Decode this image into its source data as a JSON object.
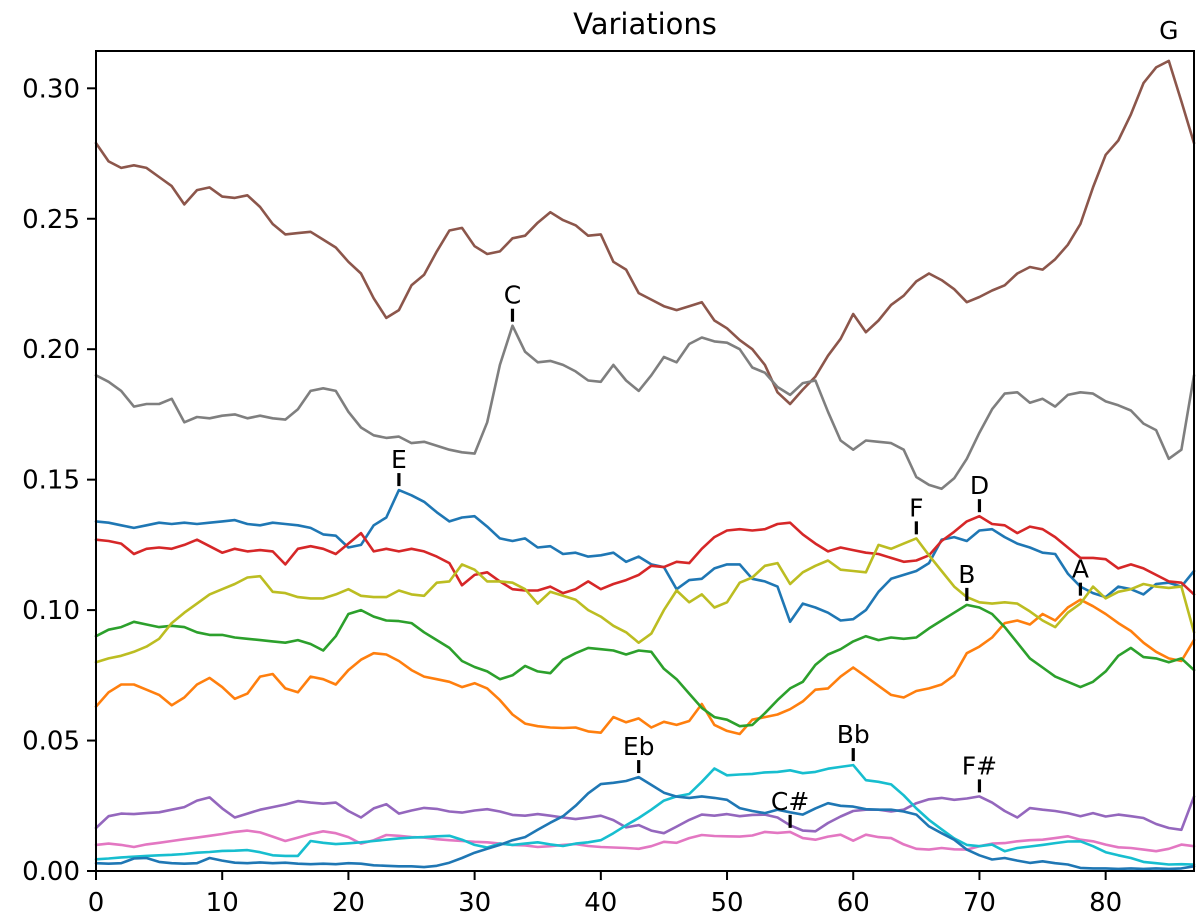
{
  "title": "Variations",
  "axes": {
    "x_ticks": [
      0,
      10,
      20,
      30,
      40,
      50,
      60,
      70,
      80
    ],
    "y_ticks": [
      "0.00",
      "0.05",
      "0.10",
      "0.15",
      "0.20",
      "0.25",
      "0.30"
    ],
    "xlim": [
      0,
      87
    ],
    "ylim": [
      0,
      0.3143
    ]
  },
  "chart_data": {
    "type": "line",
    "title": "Variations",
    "xlabel": "",
    "ylabel": "",
    "x_range": [
      0,
      87
    ],
    "grid": false,
    "legend": "none (series labeled by peak annotations)",
    "series": [
      {
        "name": "E",
        "color": "#1f77b4",
        "values": [
          0.134,
          0.1335,
          0.1325,
          0.1315,
          0.1325,
          0.1335,
          0.133,
          0.1335,
          0.133,
          0.1335,
          0.134,
          0.1345,
          0.133,
          0.1325,
          0.1335,
          0.133,
          0.1325,
          0.1315,
          0.129,
          0.1285,
          0.124,
          0.125,
          0.1325,
          0.1355,
          0.146,
          0.144,
          0.1415,
          0.1375,
          0.134,
          0.1355,
          0.136,
          0.132,
          0.1275,
          0.1265,
          0.1275,
          0.124,
          0.1245,
          0.1215,
          0.122,
          0.1205,
          0.121,
          0.122,
          0.1185,
          0.1205,
          0.1175,
          0.1165,
          0.108,
          0.1115,
          0.112,
          0.116,
          0.1175,
          0.1175,
          0.112,
          0.111,
          0.109,
          0.0955,
          0.1025,
          0.101,
          0.099,
          0.096,
          0.0965,
          0.1,
          0.107,
          0.112,
          0.1135,
          0.115,
          0.118,
          0.127,
          0.128,
          0.1265,
          0.1305,
          0.131,
          0.128,
          0.1255,
          0.124,
          0.122,
          0.1215,
          0.114,
          0.109,
          0.1065,
          0.105,
          0.109,
          0.108,
          0.106,
          0.11,
          0.1105,
          0.109,
          0.115
        ]
      },
      {
        "name": "A",
        "color": "#ff7f0e",
        "values": [
          0.063,
          0.0685,
          0.0715,
          0.0715,
          0.0695,
          0.0675,
          0.0635,
          0.0665,
          0.0715,
          0.074,
          0.0705,
          0.066,
          0.068,
          0.0745,
          0.0755,
          0.07,
          0.0685,
          0.0745,
          0.0735,
          0.0715,
          0.077,
          0.081,
          0.0835,
          0.083,
          0.0805,
          0.077,
          0.0745,
          0.0735,
          0.0725,
          0.0705,
          0.072,
          0.07,
          0.0655,
          0.06,
          0.0565,
          0.0555,
          0.055,
          0.0548,
          0.055,
          0.0535,
          0.053,
          0.059,
          0.057,
          0.0585,
          0.055,
          0.0572,
          0.056,
          0.0575,
          0.064,
          0.056,
          0.0537,
          0.0525,
          0.058,
          0.059,
          0.06,
          0.062,
          0.065,
          0.0695,
          0.07,
          0.0745,
          0.078,
          0.0745,
          0.071,
          0.0675,
          0.0665,
          0.069,
          0.07,
          0.0715,
          0.075,
          0.0835,
          0.086,
          0.0895,
          0.095,
          0.096,
          0.0945,
          0.0985,
          0.096,
          0.101,
          0.104,
          0.1015,
          0.0985,
          0.095,
          0.092,
          0.0875,
          0.084,
          0.0815,
          0.0805,
          0.0885
        ]
      },
      {
        "name": "B",
        "color": "#2ca02c",
        "values": [
          0.09,
          0.0925,
          0.0935,
          0.0955,
          0.0945,
          0.0935,
          0.094,
          0.0935,
          0.0915,
          0.0905,
          0.0905,
          0.0895,
          0.089,
          0.0885,
          0.088,
          0.0875,
          0.0885,
          0.087,
          0.0845,
          0.09,
          0.0985,
          0.1,
          0.0975,
          0.096,
          0.0958,
          0.095,
          0.0915,
          0.0885,
          0.0855,
          0.0805,
          0.0782,
          0.0765,
          0.0735,
          0.075,
          0.0786,
          0.0765,
          0.0758,
          0.081,
          0.0835,
          0.0855,
          0.085,
          0.0845,
          0.083,
          0.0845,
          0.084,
          0.0775,
          0.0735,
          0.068,
          0.0625,
          0.059,
          0.058,
          0.0555,
          0.056,
          0.0605,
          0.0655,
          0.07,
          0.0725,
          0.079,
          0.083,
          0.085,
          0.088,
          0.09,
          0.0885,
          0.0895,
          0.089,
          0.0895,
          0.093,
          0.096,
          0.099,
          0.102,
          0.101,
          0.0985,
          0.0935,
          0.0875,
          0.0815,
          0.078,
          0.0745,
          0.0725,
          0.0705,
          0.0725,
          0.0765,
          0.0825,
          0.0855,
          0.082,
          0.0815,
          0.08,
          0.0815,
          0.077
        ]
      },
      {
        "name": "D",
        "color": "#d62728",
        "values": [
          0.127,
          0.1265,
          0.1255,
          0.1215,
          0.1235,
          0.124,
          0.1235,
          0.125,
          0.127,
          0.1245,
          0.122,
          0.1235,
          0.1225,
          0.123,
          0.1225,
          0.1175,
          0.1235,
          0.1245,
          0.1235,
          0.1215,
          0.1255,
          0.1295,
          0.1225,
          0.1235,
          0.1225,
          0.1235,
          0.1225,
          0.1205,
          0.118,
          0.1095,
          0.1135,
          0.1145,
          0.111,
          0.108,
          0.1075,
          0.1075,
          0.109,
          0.1065,
          0.108,
          0.111,
          0.108,
          0.11,
          0.1115,
          0.1135,
          0.117,
          0.1165,
          0.1185,
          0.118,
          0.1235,
          0.128,
          0.1305,
          0.131,
          0.1305,
          0.131,
          0.133,
          0.1335,
          0.129,
          0.1255,
          0.1225,
          0.124,
          0.123,
          0.122,
          0.1215,
          0.12,
          0.1185,
          0.119,
          0.121,
          0.1265,
          0.13,
          0.134,
          0.136,
          0.133,
          0.1325,
          0.1295,
          0.132,
          0.131,
          0.128,
          0.124,
          0.12,
          0.12,
          0.1195,
          0.116,
          0.1175,
          0.116,
          0.1135,
          0.111,
          0.1105,
          0.106
        ]
      },
      {
        "name": "F#",
        "color": "#9467bd",
        "values": [
          0.0165,
          0.021,
          0.022,
          0.0218,
          0.0222,
          0.0225,
          0.0235,
          0.0245,
          0.027,
          0.0282,
          0.024,
          0.0205,
          0.022,
          0.0235,
          0.0245,
          0.0255,
          0.0268,
          0.0262,
          0.0258,
          0.0262,
          0.023,
          0.0205,
          0.024,
          0.0256,
          0.022,
          0.0232,
          0.0242,
          0.0238,
          0.0228,
          0.0224,
          0.0232,
          0.0237,
          0.0228,
          0.0215,
          0.0212,
          0.0218,
          0.0212,
          0.0205,
          0.0199,
          0.0205,
          0.0212,
          0.0195,
          0.0167,
          0.0176,
          0.0155,
          0.0145,
          0.017,
          0.0196,
          0.0216,
          0.0212,
          0.0218,
          0.021,
          0.0215,
          0.0216,
          0.0205,
          0.0175,
          0.0155,
          0.0152,
          0.0184,
          0.0209,
          0.023,
          0.0235,
          0.0235,
          0.0228,
          0.0235,
          0.026,
          0.0275,
          0.028,
          0.0273,
          0.0278,
          0.0286,
          0.0262,
          0.023,
          0.0205,
          0.0241,
          0.0235,
          0.023,
          0.0222,
          0.021,
          0.0222,
          0.0209,
          0.0216,
          0.021,
          0.0203,
          0.018,
          0.0165,
          0.0158,
          0.0285
        ]
      },
      {
        "name": "G",
        "color": "#8c564b",
        "values": [
          0.279,
          0.272,
          0.2695,
          0.2705,
          0.2695,
          0.266,
          0.2625,
          0.2555,
          0.261,
          0.262,
          0.2585,
          0.258,
          0.259,
          0.2545,
          0.248,
          0.244,
          0.2445,
          0.245,
          0.242,
          0.239,
          0.2335,
          0.229,
          0.2195,
          0.212,
          0.215,
          0.2245,
          0.2285,
          0.2375,
          0.2455,
          0.2465,
          0.2395,
          0.2365,
          0.2375,
          0.2425,
          0.2435,
          0.2485,
          0.2525,
          0.2495,
          0.2475,
          0.2435,
          0.244,
          0.2335,
          0.2305,
          0.2215,
          0.219,
          0.2165,
          0.215,
          0.2165,
          0.218,
          0.211,
          0.208,
          0.2035,
          0.2,
          0.194,
          0.1835,
          0.179,
          0.1845,
          0.1895,
          0.1975,
          0.204,
          0.2135,
          0.2065,
          0.211,
          0.217,
          0.2205,
          0.226,
          0.229,
          0.2265,
          0.223,
          0.218,
          0.22,
          0.2225,
          0.2245,
          0.229,
          0.2315,
          0.2305,
          0.2345,
          0.24,
          0.248,
          0.262,
          0.2745,
          0.28,
          0.29,
          0.302,
          0.308,
          0.3105,
          0.295,
          0.279
        ]
      },
      {
        "name": "C#",
        "color": "#e377c2",
        "values": [
          0.01,
          0.0105,
          0.01,
          0.0092,
          0.0102,
          0.0108,
          0.0115,
          0.0122,
          0.0128,
          0.0135,
          0.0142,
          0.015,
          0.0155,
          0.0148,
          0.0132,
          0.0115,
          0.0128,
          0.0142,
          0.0152,
          0.0145,
          0.013,
          0.0105,
          0.0118,
          0.0138,
          0.0135,
          0.013,
          0.0128,
          0.0122,
          0.0118,
          0.0115,
          0.0112,
          0.011,
          0.0105,
          0.01,
          0.0098,
          0.0092,
          0.0095,
          0.01,
          0.0103,
          0.0096,
          0.0092,
          0.009,
          0.0088,
          0.0085,
          0.0095,
          0.0112,
          0.0108,
          0.0126,
          0.0138,
          0.0134,
          0.0133,
          0.0132,
          0.0136,
          0.015,
          0.0146,
          0.015,
          0.0126,
          0.012,
          0.0132,
          0.0139,
          0.0116,
          0.0139,
          0.013,
          0.0126,
          0.0102,
          0.0085,
          0.0082,
          0.0088,
          0.0083,
          0.0082,
          0.0095,
          0.0105,
          0.0107,
          0.0114,
          0.0118,
          0.012,
          0.0126,
          0.0133,
          0.012,
          0.0114,
          0.0101,
          0.0091,
          0.0088,
          0.0082,
          0.0076,
          0.0085,
          0.0101,
          0.0095
        ]
      },
      {
        "name": "C",
        "color": "#7f7f7f",
        "values": [
          0.19,
          0.1875,
          0.184,
          0.178,
          0.179,
          0.179,
          0.181,
          0.172,
          0.174,
          0.1735,
          0.1745,
          0.175,
          0.1735,
          0.1745,
          0.1735,
          0.173,
          0.177,
          0.184,
          0.185,
          0.184,
          0.176,
          0.17,
          0.167,
          0.166,
          0.1665,
          0.164,
          0.1645,
          0.163,
          0.1615,
          0.1605,
          0.16,
          0.172,
          0.194,
          0.209,
          0.199,
          0.195,
          0.1955,
          0.194,
          0.1915,
          0.188,
          0.1875,
          0.194,
          0.188,
          0.184,
          0.19,
          0.197,
          0.195,
          0.202,
          0.2045,
          0.203,
          0.2025,
          0.2,
          0.193,
          0.191,
          0.1855,
          0.1825,
          0.187,
          0.188,
          0.176,
          0.165,
          0.1615,
          0.165,
          0.1645,
          0.164,
          0.1615,
          0.151,
          0.148,
          0.1465,
          0.1505,
          0.158,
          0.168,
          0.177,
          0.183,
          0.1835,
          0.1795,
          0.181,
          0.178,
          0.1825,
          0.1835,
          0.183,
          0.18,
          0.1785,
          0.1765,
          0.1715,
          0.169,
          0.158,
          0.1615,
          0.19
        ]
      },
      {
        "name": "F",
        "color": "#bcbd22",
        "values": [
          0.08,
          0.0815,
          0.0825,
          0.084,
          0.086,
          0.089,
          0.095,
          0.099,
          0.1025,
          0.106,
          0.108,
          0.11,
          0.1125,
          0.113,
          0.107,
          0.1065,
          0.105,
          0.1045,
          0.1045,
          0.106,
          0.108,
          0.1055,
          0.105,
          0.105,
          0.1075,
          0.106,
          0.1055,
          0.1105,
          0.111,
          0.1175,
          0.1155,
          0.111,
          0.111,
          0.1105,
          0.108,
          0.1025,
          0.107,
          0.1055,
          0.104,
          0.1,
          0.0975,
          0.094,
          0.0915,
          0.0875,
          0.091,
          0.1,
          0.1075,
          0.103,
          0.106,
          0.101,
          0.103,
          0.1105,
          0.1125,
          0.117,
          0.118,
          0.11,
          0.1145,
          0.117,
          0.119,
          0.1155,
          0.115,
          0.1145,
          0.125,
          0.1235,
          0.1255,
          0.1275,
          0.121,
          0.115,
          0.109,
          0.105,
          0.103,
          0.1025,
          0.103,
          0.1025,
          0.0995,
          0.096,
          0.0935,
          0.099,
          0.1025,
          0.109,
          0.1045,
          0.107,
          0.108,
          0.11,
          0.109,
          0.1085,
          0.109,
          0.0915
        ]
      },
      {
        "name": "Bb",
        "color": "#17becf",
        "values": [
          0.0045,
          0.0048,
          0.0052,
          0.0055,
          0.0058,
          0.006,
          0.0062,
          0.0065,
          0.007,
          0.0073,
          0.0077,
          0.0078,
          0.008,
          0.0072,
          0.006,
          0.0058,
          0.0058,
          0.0115,
          0.0108,
          0.0103,
          0.0106,
          0.011,
          0.0115,
          0.012,
          0.0125,
          0.0128,
          0.013,
          0.0133,
          0.0135,
          0.012,
          0.01,
          0.009,
          0.0105,
          0.01,
          0.0105,
          0.011,
          0.0102,
          0.0096,
          0.0105,
          0.011,
          0.0118,
          0.0145,
          0.0175,
          0.0203,
          0.0235,
          0.027,
          0.0286,
          0.0295,
          0.0342,
          0.0393,
          0.0367,
          0.037,
          0.0372,
          0.0378,
          0.038,
          0.0386,
          0.0375,
          0.038,
          0.0392,
          0.0399,
          0.0406,
          0.0348,
          0.0342,
          0.0332,
          0.029,
          0.024,
          0.0196,
          0.016,
          0.0125,
          0.01,
          0.0095,
          0.0101,
          0.0076,
          0.0088,
          0.0094,
          0.01,
          0.0107,
          0.0113,
          0.0114,
          0.0095,
          0.0072,
          0.006,
          0.005,
          0.0035,
          0.003,
          0.0025,
          0.0026,
          0.0025
        ]
      },
      {
        "name": "Eb",
        "color": "#1f77b4",
        "values": [
          0.003,
          0.0028,
          0.003,
          0.0048,
          0.005,
          0.0035,
          0.003,
          0.0028,
          0.003,
          0.005,
          0.004,
          0.0032,
          0.003,
          0.0033,
          0.003,
          0.0032,
          0.0028,
          0.0026,
          0.0028,
          0.0026,
          0.003,
          0.0028,
          0.0022,
          0.002,
          0.0018,
          0.0018,
          0.0015,
          0.002,
          0.0032,
          0.005,
          0.007,
          0.0085,
          0.01,
          0.0118,
          0.013,
          0.0158,
          0.0185,
          0.021,
          0.025,
          0.0298,
          0.0333,
          0.0338,
          0.0345,
          0.036,
          0.033,
          0.03,
          0.0285,
          0.028,
          0.0286,
          0.028,
          0.0273,
          0.0241,
          0.023,
          0.0222,
          0.0235,
          0.0225,
          0.0216,
          0.024,
          0.026,
          0.025,
          0.0247,
          0.0237,
          0.0235,
          0.0235,
          0.0228,
          0.0216,
          0.0171,
          0.0145,
          0.012,
          0.0082,
          0.006,
          0.0044,
          0.005,
          0.004,
          0.0031,
          0.0037,
          0.003,
          0.0025,
          0.0012,
          0.001,
          0.001,
          0.0008,
          0.001,
          0.0008,
          0.001,
          0.0008,
          0.001,
          0.0018
        ]
      }
    ],
    "annotations": [
      {
        "text": "G",
        "x": 85,
        "y": 0.3105,
        "tick": false
      },
      {
        "text": "C",
        "x": 33,
        "y": 0.209,
        "tick": true
      },
      {
        "text": "E",
        "x": 24,
        "y": 0.146,
        "tick": true
      },
      {
        "text": "D",
        "x": 70,
        "y": 0.136,
        "tick": true
      },
      {
        "text": "F",
        "x": 65,
        "y": 0.1275,
        "tick": true
      },
      {
        "text": "B",
        "x": 69,
        "y": 0.102,
        "tick": true
      },
      {
        "text": "A",
        "x": 78,
        "y": 0.104,
        "tick": true
      },
      {
        "text": "Eb",
        "x": 43,
        "y": 0.036,
        "tick": true
      },
      {
        "text": "Bb",
        "x": 60,
        "y": 0.0406,
        "tick": true
      },
      {
        "text": "F#",
        "x": 70,
        "y": 0.0286,
        "tick": true
      },
      {
        "text": "C#",
        "x": 55,
        "y": 0.015,
        "tick": true
      }
    ]
  }
}
